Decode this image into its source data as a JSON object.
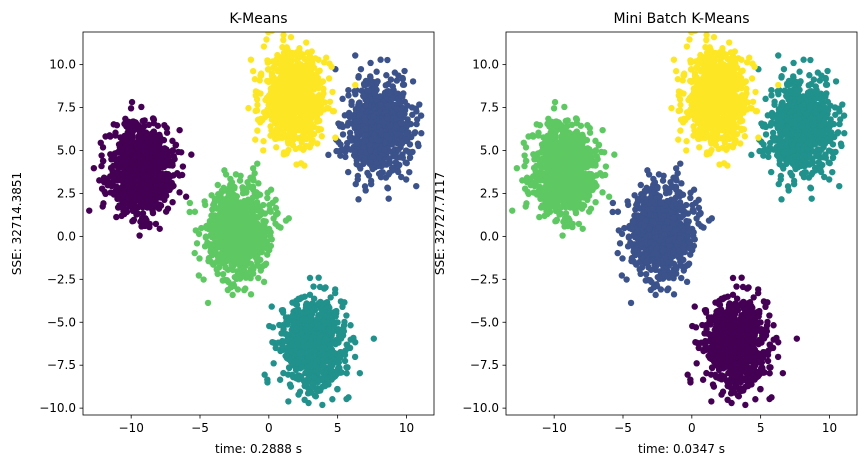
{
  "chart_data": [
    {
      "type": "scatter",
      "title": "K-Means",
      "xlabel": "time: 0.2888 s",
      "ylabel": "SSE: 32714.3851",
      "xlim": [
        -13.5,
        12.0
      ],
      "ylim": [
        -10.4,
        11.9
      ],
      "xticks": [
        -10,
        -5,
        0,
        5,
        10
      ],
      "xtick_labels": [
        "−10",
        "−5",
        "0",
        "5",
        "10"
      ],
      "yticks": [
        -10.0,
        -7.5,
        -5.0,
        -2.5,
        0.0,
        2.5,
        5.0,
        7.5,
        10.0
      ],
      "ytick_labels": [
        "−10.0",
        "−7.5",
        "−5.0",
        "−2.5",
        "0.0",
        "2.5",
        "5.0",
        "7.5",
        "10.0"
      ],
      "grid": false,
      "clusters": [
        {
          "color": "#440154",
          "center": [
            -9.3,
            3.9
          ],
          "spread": [
            1.15,
            1.3
          ]
        },
        {
          "color": "#3b528b",
          "center": [
            7.9,
            6.3
          ],
          "spread": [
            1.1,
            1.3
          ]
        },
        {
          "color": "#21918c",
          "center": [
            3.2,
            -6.3
          ],
          "spread": [
            1.1,
            1.3
          ]
        },
        {
          "color": "#5ec962",
          "center": [
            -2.2,
            0.3
          ],
          "spread": [
            1.1,
            1.3
          ]
        },
        {
          "color": "#fde725",
          "center": [
            1.8,
            8.0
          ],
          "spread": [
            1.1,
            1.3
          ]
        }
      ]
    },
    {
      "type": "scatter",
      "title": "Mini Batch K-Means",
      "xlabel": "time: 0.0347 s",
      "ylabel": "SSE: 32727.7117",
      "xlim": [
        -13.5,
        12.0
      ],
      "ylim": [
        -10.4,
        11.9
      ],
      "xticks": [
        -10,
        -5,
        0,
        5,
        10
      ],
      "xtick_labels": [
        "−10",
        "−5",
        "0",
        "5",
        "10"
      ],
      "yticks": [
        -10.0,
        -7.5,
        -5.0,
        -2.5,
        0.0,
        2.5,
        5.0,
        7.5,
        10.0
      ],
      "ytick_labels": [
        "−10.0",
        "−7.5",
        "−5.0",
        "−2.5",
        "0.0",
        "2.5",
        "5.0",
        "7.5",
        "10.0"
      ],
      "grid": false,
      "clusters": [
        {
          "color": "#5ec962",
          "center": [
            -9.3,
            3.9
          ],
          "spread": [
            1.15,
            1.3
          ]
        },
        {
          "color": "#21918c",
          "center": [
            7.9,
            6.3
          ],
          "spread": [
            1.1,
            1.3
          ]
        },
        {
          "color": "#440154",
          "center": [
            3.2,
            -6.3
          ],
          "spread": [
            1.1,
            1.3
          ]
        },
        {
          "color": "#3b528b",
          "center": [
            -2.2,
            0.3
          ],
          "spread": [
            1.1,
            1.3
          ]
        },
        {
          "color": "#fde725",
          "center": [
            1.8,
            8.0
          ],
          "spread": [
            1.1,
            1.3
          ]
        }
      ]
    }
  ]
}
